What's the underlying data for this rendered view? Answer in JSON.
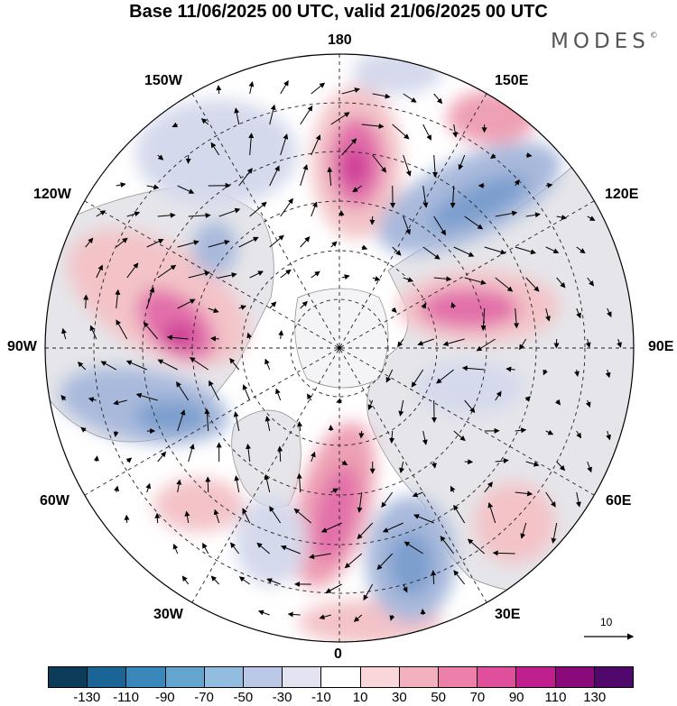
{
  "title": "Base 11/06/2025 00 UTC, valid 21/06/2025 00 UTC",
  "brand": {
    "name": "MODES",
    "mark": "©"
  },
  "longitude_labels": {
    "top": "180",
    "bottom": "0",
    "left": "90W",
    "right": "90E",
    "upper_left": "150W",
    "upper_right": "150E",
    "mid_left": "120W",
    "mid_right": "120E",
    "lower_left_mid": "60W",
    "lower_right_mid": "60E",
    "lower_left": "30W",
    "lower_right": "30E"
  },
  "vector_scale": {
    "label": "10"
  },
  "colorbar": {
    "colors": [
      "#0d3b5a",
      "#1a6595",
      "#3a88bb",
      "#64a5d0",
      "#92bde0",
      "#bcc9e6",
      "#e3e3f1",
      "#ffffff",
      "#f8d6d9",
      "#f3b0be",
      "#ed80a8",
      "#e04f9c",
      "#c01f8e",
      "#8a0a7a",
      "#50086b"
    ],
    "tick_labels": [
      "-130",
      "-110",
      "-90",
      "-70",
      "-50",
      "-30",
      "-10",
      "10",
      "30",
      "50",
      "70",
      "90",
      "110",
      "130"
    ]
  },
  "anomaly_colors": {
    "pos_weak": "#f3c3c8",
    "pos_mid": "#eea0b4",
    "pos_strong": "#e270aa",
    "pos_max": "#cc3a96",
    "neg_weak": "#d5d9ec",
    "neg_mid": "#a9b9dc",
    "neg_strong": "#7c9fce",
    "land": "#e9e9ec"
  }
}
